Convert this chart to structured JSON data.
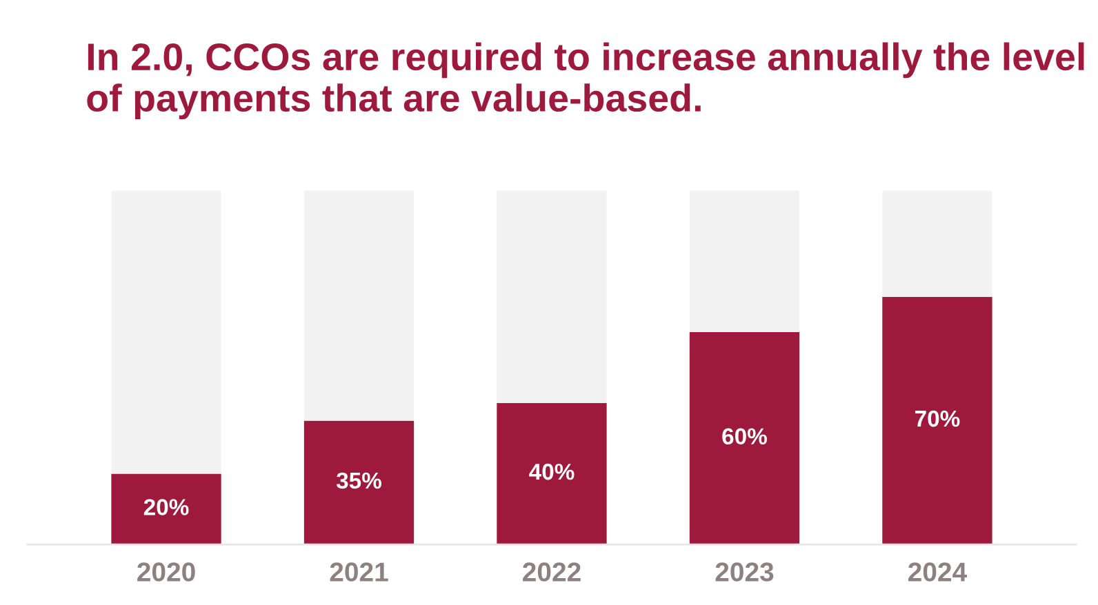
{
  "chart_data": {
    "type": "bar",
    "title": "In 2.0, CCOs are required to increase annually the level of payments that are value-based.",
    "categories": [
      "2020",
      "2021",
      "2022",
      "2023",
      "2024"
    ],
    "stacked": true,
    "series": [
      {
        "color": "#9e1a3c",
        "values": [
          20,
          35,
          40,
          60,
          70
        ],
        "value_labels": [
          "20%",
          "35%",
          "40%",
          "60%",
          "70%"
        ]
      },
      {
        "color": "#f2f2f2",
        "values": [
          80,
          65,
          60,
          40,
          30
        ]
      }
    ],
    "ylim": [
      0,
      100
    ],
    "tick_labels": "x",
    "grid": false,
    "legend": false
  }
}
